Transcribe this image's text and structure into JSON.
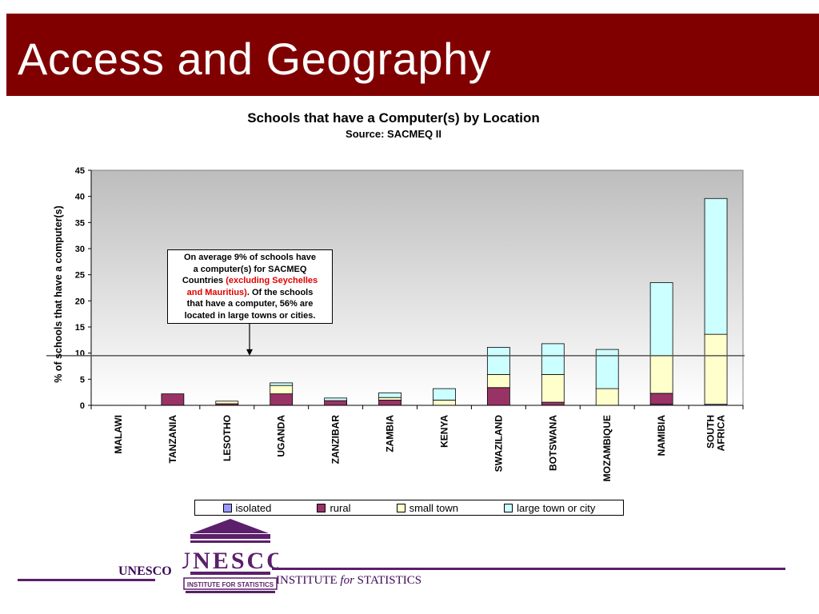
{
  "slide": {
    "title": "Access and Geography"
  },
  "annotation": {
    "line1": "On average 9% of schools have",
    "line2": "a computer(s) for SACMEQ",
    "line3_prefix": "Countries ",
    "line3_red": "(excluding Seychelles",
    "line4_red": "and Mauritius)",
    "line4_suffix": ". Of the schools",
    "line5": "that have a computer, 56% are",
    "line6": "located in large towns or cities."
  },
  "footer": {
    "unesco": "UNESCO",
    "logo_text": "UNESCO",
    "logo_subtext": "INSTITUTE FOR STATISTICS",
    "institute_prefix": "INSTITUTE ",
    "institute_for": "for",
    "institute_suffix": " STATISTICS"
  },
  "colors": {
    "banner": "#800000",
    "isolated": "#9999ff",
    "rural": "#993366",
    "small_town": "#ffffcc",
    "large_town": "#ccffff",
    "footer_purple": "#5b1f6b"
  },
  "chart_data": {
    "type": "bar",
    "stacked": true,
    "title": "Schools that have a Computer(s) by Location",
    "subtitle": "Source: SACMEQ II",
    "ylabel": "% of schools that have a computer(s)",
    "xlabel": "",
    "ylim": [
      0,
      45
    ],
    "yticks": [
      0,
      5,
      10,
      15,
      20,
      25,
      30,
      35,
      40,
      45
    ],
    "reference_line": 9.5,
    "categories": [
      "MALAWI",
      "TANZANIA",
      "LESOTHO",
      "UGANDA",
      "ZANZIBAR",
      "ZAMBIA",
      "KENYA",
      "SWAZILAND",
      "BOTSWANA",
      "MOZAMBIQUE",
      "NAMIBIA",
      "SOUTH AFRICA"
    ],
    "category_lines": [
      [
        "MALAWI"
      ],
      [
        "TANZANIA"
      ],
      [
        "LESOTHO"
      ],
      [
        "UGANDA"
      ],
      [
        "ZANZIBAR"
      ],
      [
        "ZAMBIA"
      ],
      [
        "KENYA"
      ],
      [
        "SWAZILAND"
      ],
      [
        "BOTSWANA"
      ],
      [
        "MOZAMBIQUE"
      ],
      [
        "NAMIBIA"
      ],
      [
        "SOUTH",
        "AFRICA"
      ]
    ],
    "series": [
      {
        "name": "isolated",
        "color": "#9999ff",
        "values": [
          0,
          0,
          0,
          0,
          0,
          0,
          0,
          0,
          0,
          0,
          0.2,
          0.2
        ]
      },
      {
        "name": "rural",
        "color": "#993366",
        "values": [
          0,
          2.2,
          0.3,
          2.2,
          0.9,
          1.0,
          0,
          3.4,
          0.6,
          0,
          2.1,
          0
        ]
      },
      {
        "name": "small town",
        "color": "#ffffcc",
        "values": [
          0,
          0,
          0.5,
          1.6,
          0,
          0.5,
          1.0,
          2.5,
          5.3,
          3.2,
          7.2,
          13.4
        ]
      },
      {
        "name": "large town or city",
        "color": "#ccffff",
        "values": [
          0,
          0,
          0,
          0.5,
          0.5,
          0.9,
          2.2,
          5.2,
          5.9,
          7.5,
          14.0,
          26.0
        ]
      }
    ],
    "legend_position": "bottom",
    "grid": false
  }
}
